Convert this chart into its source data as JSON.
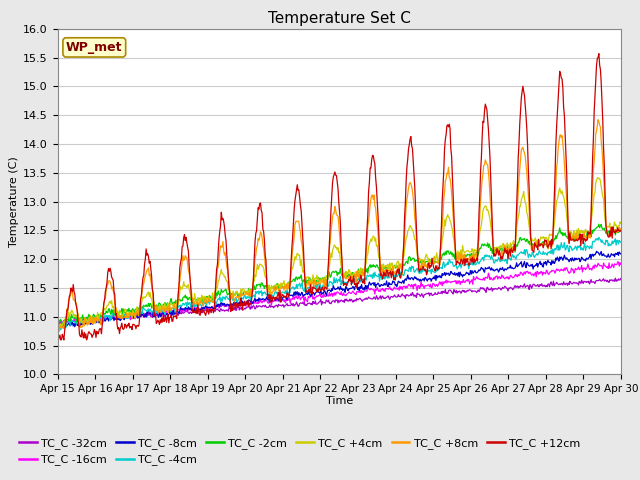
{
  "title": "Temperature Set C",
  "xlabel": "Time",
  "ylabel": "Temperature (C)",
  "ylim": [
    10.0,
    16.0
  ],
  "yticks": [
    10.0,
    10.5,
    11.0,
    11.5,
    12.0,
    12.5,
    13.0,
    13.5,
    14.0,
    14.5,
    15.0,
    15.5,
    16.0
  ],
  "xtick_labels": [
    "Apr 15",
    "Apr 16",
    "Apr 17",
    "Apr 18",
    "Apr 19",
    "Apr 20",
    "Apr 21",
    "Apr 22",
    "Apr 23",
    "Apr 24",
    "Apr 25",
    "Apr 26",
    "Apr 27",
    "Apr 28",
    "Apr 29",
    "Apr 30"
  ],
  "wp_met_label": "WP_met",
  "plot_bg_color": "#ffffff",
  "fig_bg_color": "#e8e8e8",
  "series_colors": {
    "TC_C -32cm": "#aa00cc",
    "TC_C -16cm": "#ff00ff",
    "TC_C -8cm": "#0000cc",
    "TC_C -4cm": "#00cccc",
    "TC_C -2cm": "#00cc00",
    "TC_C +4cm": "#cccc00",
    "TC_C +8cm": "#ff9900",
    "TC_C +12cm": "#cc0000"
  },
  "legend_order": [
    "TC_C -32cm",
    "TC_C -16cm",
    "TC_C -8cm",
    "TC_C -4cm",
    "TC_C -2cm",
    "TC_C +4cm",
    "TC_C +8cm",
    "TC_C +12cm"
  ]
}
